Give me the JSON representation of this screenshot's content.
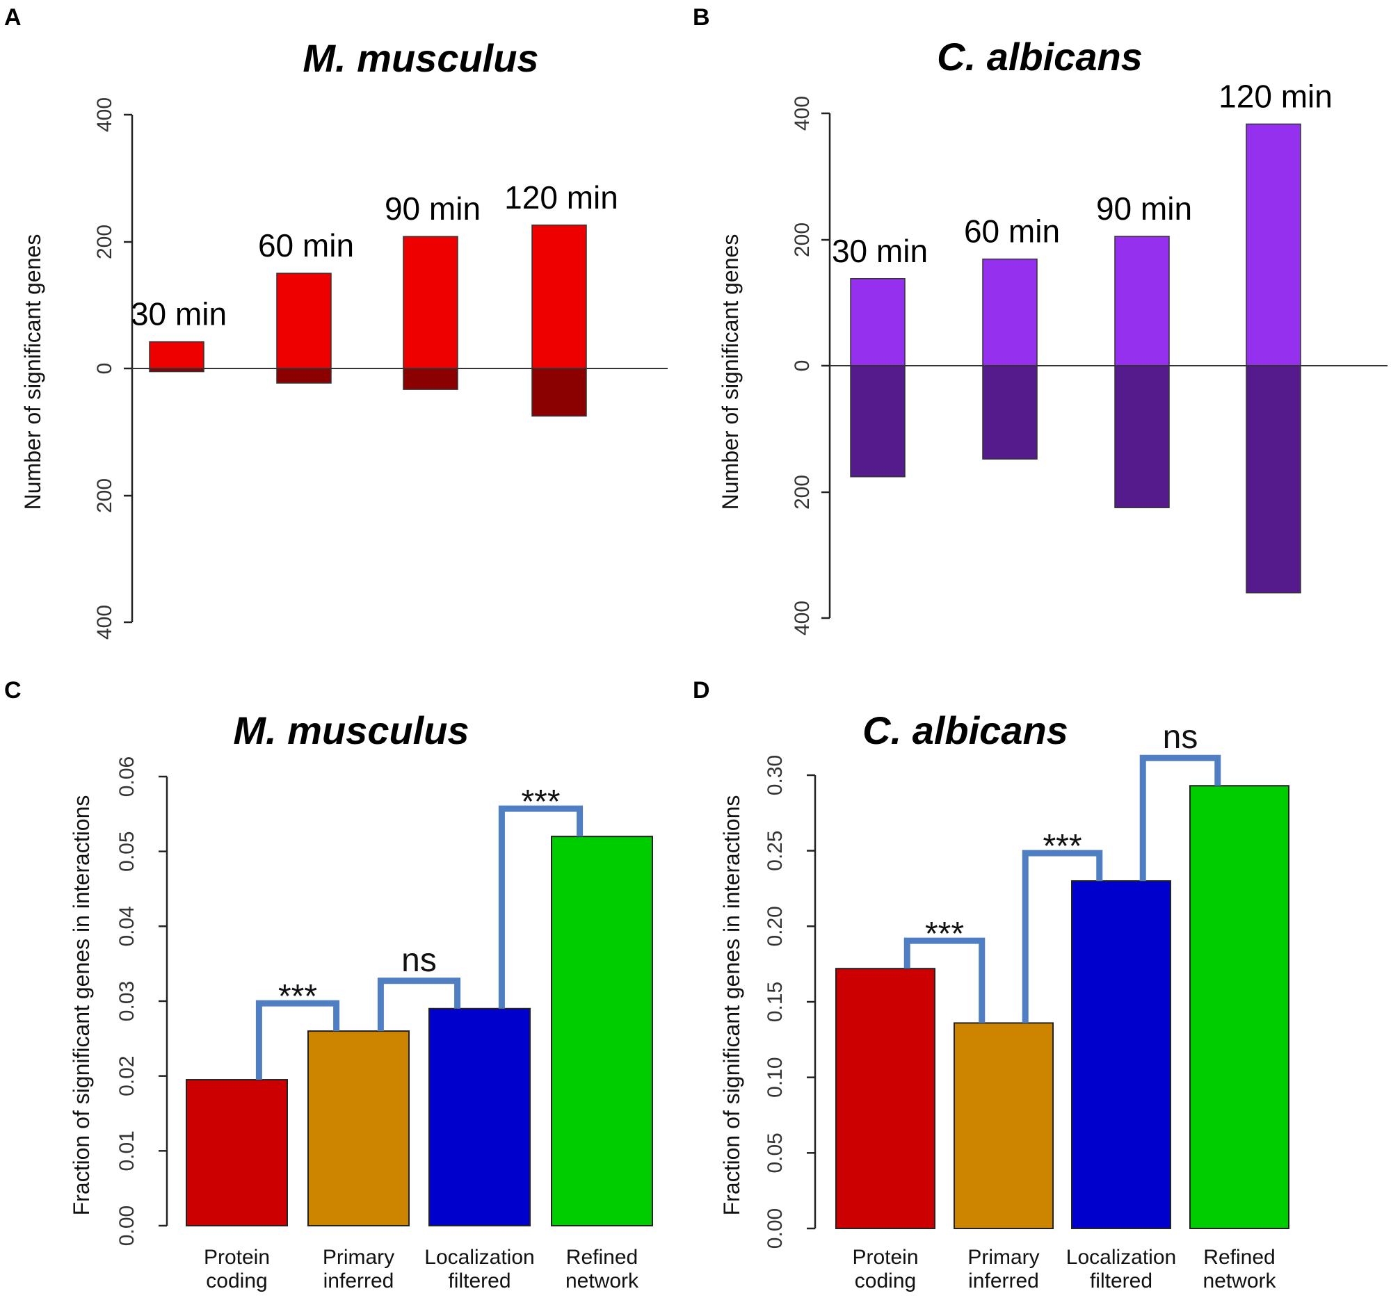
{
  "chart_data": [
    {
      "panel": "A",
      "type": "bar",
      "title": "M. musculus",
      "ylabel": "Number of significant genes",
      "yticks": [
        "400",
        "200",
        "0",
        "200",
        "400"
      ],
      "ylim": [
        -400,
        400
      ],
      "categories": [
        "30 min",
        "60 min",
        "90 min",
        "120 min"
      ],
      "series": [
        {
          "name": "up",
          "values": [
            42,
            150,
            208,
            226
          ],
          "color": "#EE0000"
        },
        {
          "name": "down",
          "values": [
            -5,
            -23,
            -33,
            -75
          ],
          "color": "#8B0000"
        }
      ]
    },
    {
      "panel": "B",
      "type": "bar",
      "title": "C. albicans",
      "ylabel": "Number of significant genes",
      "yticks": [
        "400",
        "200",
        "0",
        "200",
        "400"
      ],
      "ylim": [
        -400,
        400
      ],
      "categories": [
        "30 min",
        "60 min",
        "90 min",
        "120 min"
      ],
      "series": [
        {
          "name": "up",
          "values": [
            138,
            169,
            205,
            383
          ],
          "color": "#9430EE"
        },
        {
          "name": "down",
          "values": [
            -176,
            -148,
            -225,
            -360
          ],
          "color": "#551A8B"
        }
      ]
    },
    {
      "panel": "C",
      "type": "bar",
      "title": "M. musculus",
      "ylabel": "Fraction of significant genes in interactions",
      "yticks": [
        "0.00",
        "0.01",
        "0.02",
        "0.03",
        "0.04",
        "0.05",
        "0.06"
      ],
      "ylim": [
        0,
        0.06
      ],
      "categories": [
        [
          "Protein",
          "coding"
        ],
        [
          "Primary",
          "inferred"
        ],
        [
          "Localization",
          "filtered"
        ],
        [
          "Refined",
          "network"
        ]
      ],
      "values": [
        0.0195,
        0.026,
        0.029,
        0.052
      ],
      "colors": [
        "#CC0000",
        "#CD8500",
        "#0000CD",
        "#00CD00"
      ],
      "significance": [
        {
          "pair": [
            0,
            1
          ],
          "label": "***"
        },
        {
          "pair": [
            1,
            2
          ],
          "label": "ns"
        },
        {
          "pair": [
            2,
            3
          ],
          "label": "***"
        }
      ]
    },
    {
      "panel": "D",
      "type": "bar",
      "title": "C. albicans",
      "ylabel": "Fraction of significant genes in interactions",
      "yticks": [
        "0.00",
        "0.05",
        "0.10",
        "0.15",
        "0.20",
        "0.25",
        "0.30"
      ],
      "ylim": [
        0,
        0.3
      ],
      "categories": [
        [
          "Protein",
          "coding"
        ],
        [
          "Primary",
          "inferred"
        ],
        [
          "Localization",
          "filtered"
        ],
        [
          "Refined",
          "network"
        ]
      ],
      "values": [
        0.172,
        0.136,
        0.23,
        0.293
      ],
      "colors": [
        "#CC0000",
        "#CD8500",
        "#0000CD",
        "#00CD00"
      ],
      "significance": [
        {
          "pair": [
            0,
            1
          ],
          "label": "***"
        },
        {
          "pair": [
            1,
            2
          ],
          "label": "***"
        },
        {
          "pair": [
            2,
            3
          ],
          "label": "ns"
        }
      ]
    }
  ]
}
